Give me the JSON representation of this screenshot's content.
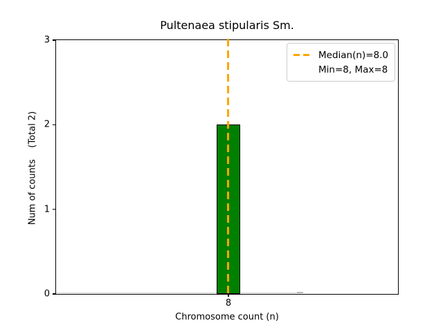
{
  "title": "Pultenaea stipularis Sm.",
  "axes": {
    "xlabel": "Chromosome count (n)",
    "ylabel": "Num of counts    (Total 2)",
    "y_tick_labels": [
      "0",
      "1",
      "2",
      "3"
    ],
    "x_tick_labels": [
      "8"
    ]
  },
  "legend": {
    "position": "upper right",
    "entries": [
      {
        "label": "Median(n)=8.0",
        "marker": "dashed-line",
        "color": "#FFA500"
      },
      {
        "label": "Min=8, Max=8",
        "marker": "none"
      }
    ]
  },
  "colors": {
    "background": "#ffffff",
    "bar": "#008000",
    "bar_edge": "#000000",
    "median_line": "#FFA500",
    "spine": "#000000",
    "legend_border": "#cccccc",
    "baseline_artifact": "#cdcdcd"
  },
  "chart_data": {
    "type": "bar",
    "title": "Pultenaea stipularis Sm.",
    "xlabel": "Chromosome count (n)",
    "ylabel": "Num of counts    (Total 2)",
    "categories": [
      8
    ],
    "values": [
      2
    ],
    "total": 2,
    "min": 8,
    "max": 8,
    "median": 8.0,
    "ylim": [
      0,
      3
    ],
    "y_ticks": [
      0,
      1,
      2,
      3
    ],
    "x_ticks": [
      8
    ],
    "grid": false,
    "legend_position": "upper right",
    "bar_color": "#008000",
    "bar_edge_color": "#000000",
    "median_line": {
      "x": 8,
      "label": "Median(n)=8.0",
      "color": "#FFA500",
      "style": "dashed"
    },
    "layout": {
      "bar_center_frac": 0.504,
      "bar_width_frac": 0.067
    }
  }
}
